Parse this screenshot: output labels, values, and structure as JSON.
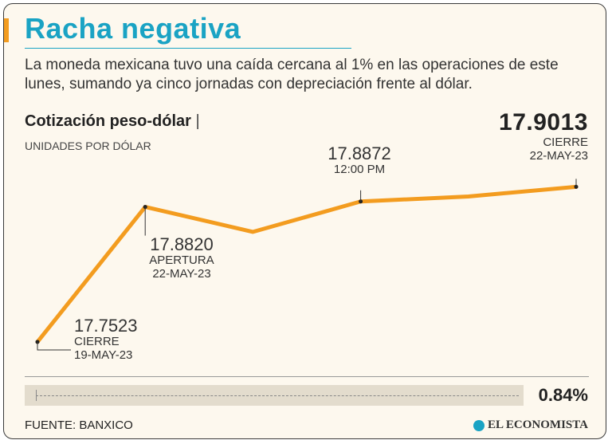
{
  "header": {
    "title": "Racha negativa",
    "subtitle": "La moneda mexicana tuvo una caída cercana al 1% en las operaciones de este lunes, sumando ya cinco jornadas con depreciación frente al dólar."
  },
  "chart_data": {
    "type": "line",
    "title": "Cotización peso-dólar",
    "title_separator": "|",
    "ylabel": "UNIDADES POR DÓLAR",
    "headline_value": "17.9013",
    "x": [
      0,
      1,
      2,
      3,
      4,
      5
    ],
    "values": [
      17.7523,
      17.882,
      17.858,
      17.8872,
      17.892,
      17.9013
    ],
    "ylim": [
      17.74,
      17.91
    ],
    "line_color": "#f39c1f",
    "annotations": [
      {
        "index": 0,
        "value": "17.7523",
        "line1": "CIERRE",
        "line2": "19-MAY-23"
      },
      {
        "index": 1,
        "value": "17.8820",
        "line1": "APERTURA",
        "line2": "22-MAY-23"
      },
      {
        "index": 3,
        "value": "17.8872",
        "line1": "12:00 PM",
        "line2": ""
      },
      {
        "index": 5,
        "value": "",
        "line1": "CIERRE",
        "line2": "22-MAY-23"
      }
    ]
  },
  "change": {
    "percent_label": "0.84%",
    "percent_value": 0.84
  },
  "footer": {
    "source": "FUENTE: BANXICO",
    "brand": "EL ECONOMISTA"
  },
  "colors": {
    "accent": "#1aa3c4",
    "line": "#f39c1f",
    "background": "#fdf8ee"
  }
}
